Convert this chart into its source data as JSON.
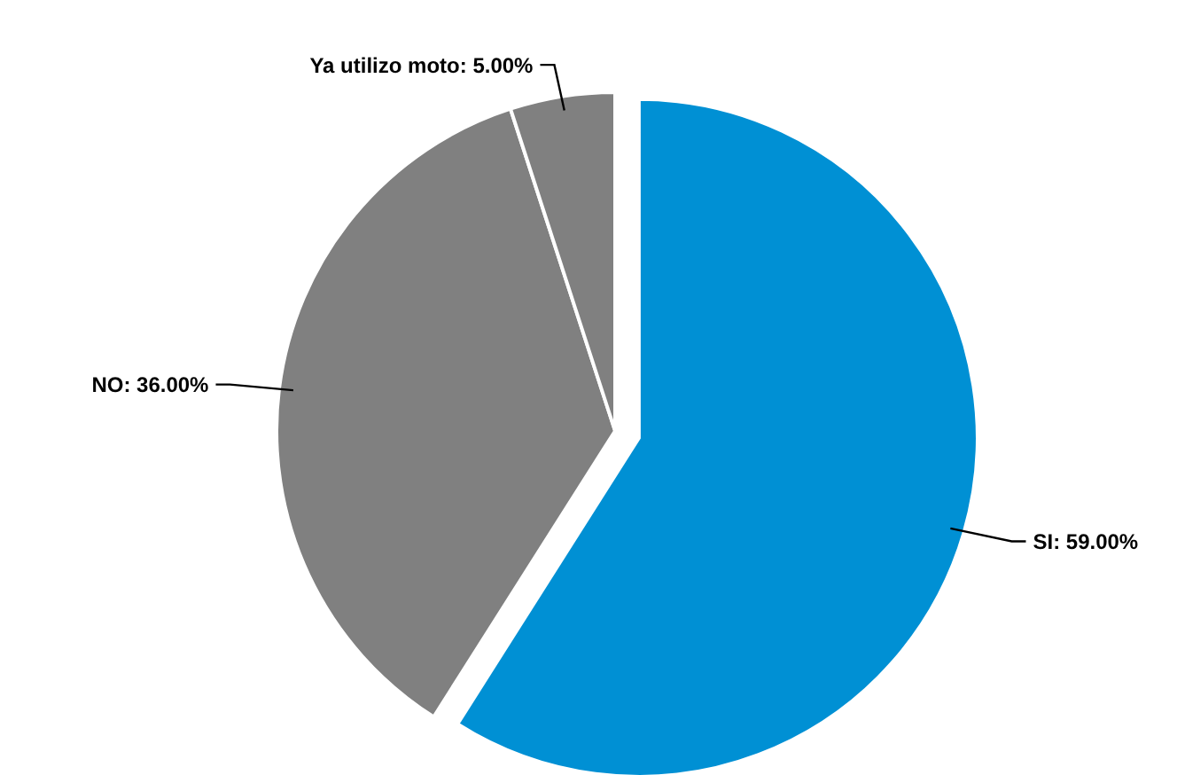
{
  "chart_data": {
    "type": "pie",
    "categories": [
      "SI",
      "NO",
      "Ya utilizo moto"
    ],
    "values": [
      59,
      36,
      5
    ],
    "value_labels": [
      "59.00%",
      "36.00%",
      "5.00%"
    ],
    "colors": [
      "#0090d4",
      "#808080",
      "#808080"
    ]
  }
}
